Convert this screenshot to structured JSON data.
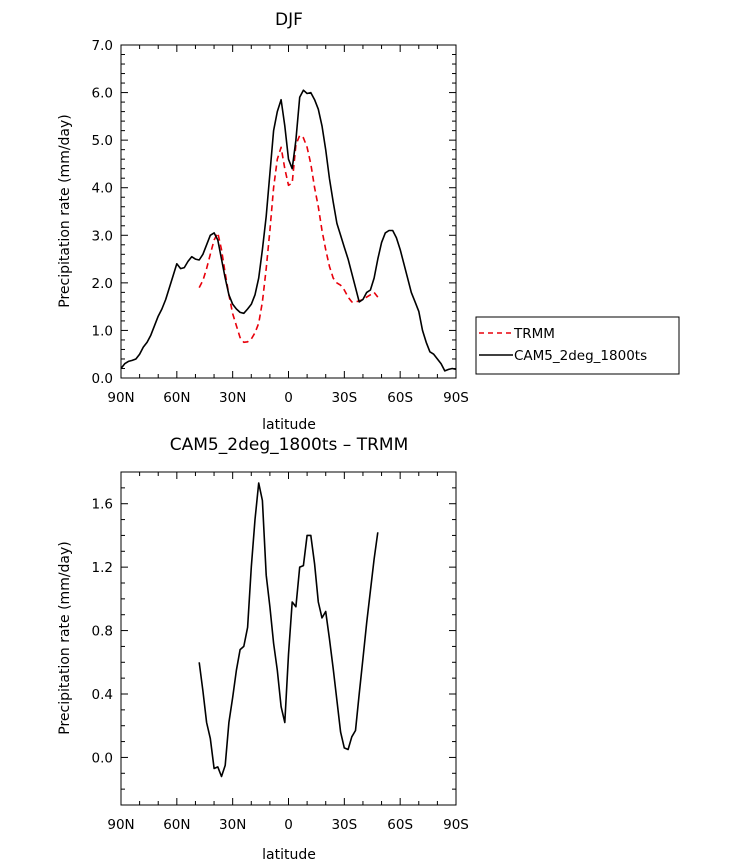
{
  "chart_data": [
    {
      "type": "line",
      "title": "DJF",
      "xlabel": "latitude",
      "ylabel": "Precipitation rate (mm/day)",
      "x_ticks": [
        {
          "value": 90,
          "label": "90N"
        },
        {
          "value": 60,
          "label": "60N"
        },
        {
          "value": 30,
          "label": "30N"
        },
        {
          "value": 0,
          "label": "0"
        },
        {
          "value": -30,
          "label": "30S"
        },
        {
          "value": -60,
          "label": "60S"
        },
        {
          "value": -90,
          "label": "90S"
        }
      ],
      "y_ticks": [
        {
          "value": 0,
          "label": "0.0"
        },
        {
          "value": 1,
          "label": "1.0"
        },
        {
          "value": 2,
          "label": "2.0"
        },
        {
          "value": 3,
          "label": "3.0"
        },
        {
          "value": 4,
          "label": "4.0"
        },
        {
          "value": 5,
          "label": "5.0"
        },
        {
          "value": 6,
          "label": "6.0"
        },
        {
          "value": 7,
          "label": "7.0"
        }
      ],
      "xlim": [
        90,
        -90
      ],
      "ylim": [
        0,
        7
      ],
      "legend": "right, outside plot",
      "series": [
        {
          "name": "TRMM",
          "color": "#e8000b",
          "dash": "dashed",
          "x": [
            48,
            46,
            44,
            42,
            40,
            38,
            36,
            34,
            32,
            30,
            28,
            26,
            24,
            22,
            20,
            18,
            16,
            14,
            12,
            10,
            8,
            6,
            4,
            2,
            0,
            -2,
            -4,
            -6,
            -8,
            -10,
            -12,
            -14,
            -16,
            -18,
            -20,
            -22,
            -24,
            -26,
            -28,
            -30,
            -32,
            -34,
            -36,
            -38,
            -40,
            -42,
            -44,
            -46,
            -48
          ],
          "y": [
            1.9,
            2.05,
            2.3,
            2.6,
            2.9,
            3.05,
            2.7,
            2.2,
            1.75,
            1.35,
            1.1,
            0.85,
            0.75,
            0.76,
            0.82,
            0.95,
            1.15,
            1.6,
            2.3,
            3.1,
            4.0,
            4.6,
            4.85,
            4.4,
            4.05,
            4.1,
            4.9,
            5.1,
            5.05,
            4.85,
            4.5,
            4.0,
            3.6,
            3.1,
            2.7,
            2.35,
            2.1,
            2.0,
            1.95,
            1.85,
            1.7,
            1.6,
            1.6,
            1.62,
            1.65,
            1.7,
            1.75,
            1.8,
            1.7
          ]
        },
        {
          "name": "CAM5_2deg_1800ts",
          "color": "#000000",
          "dash": "solid",
          "x": [
            90,
            88,
            86,
            84,
            82,
            80,
            78,
            76,
            74,
            72,
            70,
            68,
            66,
            64,
            62,
            60,
            58,
            56,
            54,
            52,
            50,
            48,
            46,
            44,
            42,
            40,
            38,
            36,
            34,
            32,
            30,
            28,
            26,
            24,
            22,
            20,
            18,
            16,
            14,
            12,
            10,
            8,
            6,
            4,
            2,
            0,
            -2,
            -4,
            -6,
            -8,
            -10,
            -12,
            -14,
            -16,
            -18,
            -20,
            -22,
            -24,
            -26,
            -28,
            -30,
            -32,
            -34,
            -36,
            -38,
            -40,
            -42,
            -44,
            -46,
            -48,
            -50,
            -52,
            -54,
            -56,
            -58,
            -60,
            -62,
            -64,
            -66,
            -68,
            -70,
            -72,
            -74,
            -76,
            -78,
            -80,
            -82,
            -84,
            -86,
            -88,
            -90
          ],
          "y": [
            0.2,
            0.3,
            0.35,
            0.37,
            0.4,
            0.5,
            0.65,
            0.75,
            0.9,
            1.1,
            1.3,
            1.45,
            1.65,
            1.9,
            2.15,
            2.4,
            2.3,
            2.32,
            2.45,
            2.55,
            2.5,
            2.48,
            2.6,
            2.8,
            3.0,
            3.05,
            2.9,
            2.5,
            2.1,
            1.75,
            1.55,
            1.45,
            1.38,
            1.36,
            1.45,
            1.55,
            1.75,
            2.1,
            2.7,
            3.4,
            4.3,
            5.2,
            5.6,
            5.85,
            5.3,
            4.6,
            4.4,
            5.0,
            5.9,
            6.05,
            5.98,
            6.0,
            5.85,
            5.65,
            5.3,
            4.8,
            4.2,
            3.7,
            3.25,
            3.0,
            2.75,
            2.5,
            2.2,
            1.9,
            1.6,
            1.65,
            1.8,
            1.85,
            2.1,
            2.5,
            2.85,
            3.05,
            3.1,
            3.1,
            2.95,
            2.7,
            2.4,
            2.1,
            1.8,
            1.6,
            1.4,
            1.0,
            0.75,
            0.55,
            0.5,
            0.4,
            0.3,
            0.15,
            0.18,
            0.2,
            0.18
          ]
        }
      ]
    },
    {
      "type": "line",
      "title": "CAM5_2deg_1800ts – TRMM",
      "xlabel": "latitude",
      "ylabel": "Precipitation rate (mm/day)",
      "x_ticks": [
        {
          "value": 90,
          "label": "90N"
        },
        {
          "value": 60,
          "label": "60N"
        },
        {
          "value": 30,
          "label": "30N"
        },
        {
          "value": 0,
          "label": "0"
        },
        {
          "value": -30,
          "label": "30S"
        },
        {
          "value": -60,
          "label": "60S"
        },
        {
          "value": -90,
          "label": "90S"
        }
      ],
      "y_ticks": [
        {
          "value": 0.0,
          "label": "0.0"
        },
        {
          "value": 0.4,
          "label": "0.4"
        },
        {
          "value": 0.8,
          "label": "0.8"
        },
        {
          "value": 1.2,
          "label": "1.2"
        },
        {
          "value": 1.6,
          "label": "1.6"
        }
      ],
      "xlim": [
        90,
        -90
      ],
      "ylim": [
        -0.3,
        1.8
      ],
      "series": [
        {
          "color": "#000000",
          "dash": "solid",
          "x": [
            48,
            46,
            44,
            42,
            40,
            38,
            36,
            34,
            32,
            30,
            28,
            26,
            24,
            22,
            20,
            18,
            16,
            14,
            12,
            10,
            8,
            6,
            4,
            2,
            0,
            -2,
            -4,
            -6,
            -8,
            -10,
            -12,
            -14,
            -16,
            -18,
            -20,
            -22,
            -24,
            -26,
            -28,
            -30,
            -32,
            -34,
            -36,
            -38,
            -40,
            -42,
            -44,
            -46,
            -48
          ],
          "y": [
            0.6,
            0.42,
            0.22,
            0.12,
            -0.07,
            -0.06,
            -0.12,
            -0.05,
            0.22,
            0.38,
            0.55,
            0.68,
            0.7,
            0.82,
            1.2,
            1.5,
            1.73,
            1.62,
            1.15,
            0.95,
            0.72,
            0.55,
            0.32,
            0.22,
            0.65,
            0.98,
            0.95,
            1.2,
            1.21,
            1.4,
            1.4,
            1.22,
            0.98,
            0.88,
            0.92,
            0.75,
            0.56,
            0.36,
            0.16,
            0.06,
            0.05,
            0.13,
            0.17,
            0.4,
            0.62,
            0.85,
            1.05,
            1.25,
            1.42
          ]
        }
      ]
    }
  ]
}
